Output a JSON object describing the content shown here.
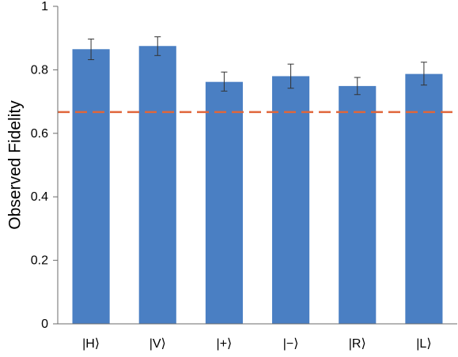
{
  "chart_data": {
    "type": "bar",
    "categories": [
      "|H⟩",
      "|V⟩",
      "|+⟩",
      "|−⟩",
      "|R⟩",
      "|L⟩"
    ],
    "values": [
      0.865,
      0.875,
      0.762,
      0.78,
      0.749,
      0.787
    ],
    "error_low": [
      0.033,
      0.03,
      0.029,
      0.038,
      0.027,
      0.035
    ],
    "error_high": [
      0.032,
      0.029,
      0.031,
      0.038,
      0.027,
      0.037
    ],
    "title": "",
    "xlabel": "",
    "ylabel": "Observed Fidelity",
    "ylim": [
      0,
      1
    ],
    "yticks": [
      0,
      0.2,
      0.4,
      0.6,
      0.8,
      1
    ],
    "ytick_labels": [
      "0",
      "0.2",
      "0.4",
      "0.6",
      "0.8",
      "1"
    ],
    "reference_line": 0.667,
    "grid": false,
    "colors": {
      "bar": "#4a7fc3",
      "error_bar": "#333333",
      "reference_line": "#e0663b",
      "axis": "#6b6b6b"
    }
  }
}
